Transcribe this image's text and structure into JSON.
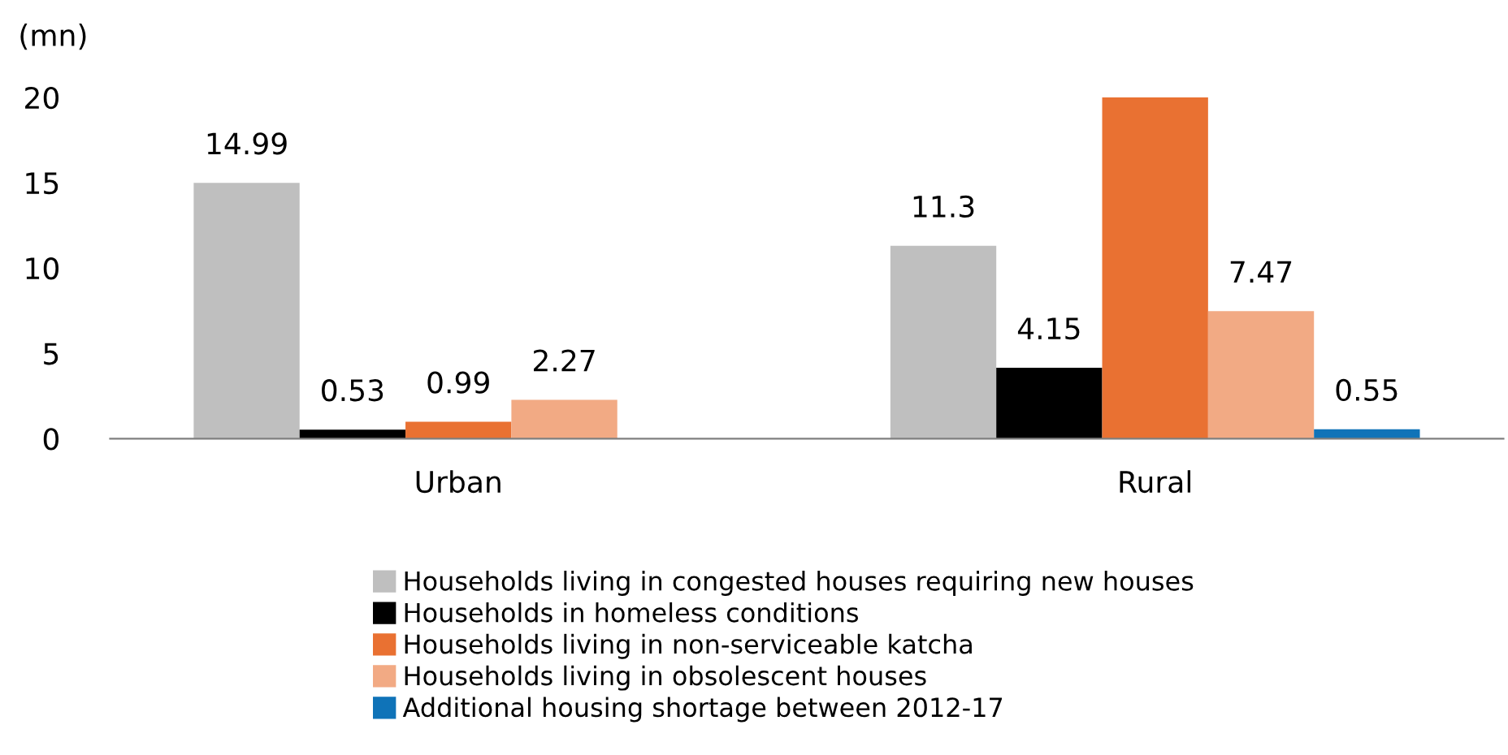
{
  "chart_data": {
    "type": "bar",
    "ylabel": "(mn)",
    "categories": [
      "Urban",
      "Rural"
    ],
    "series": [
      {
        "name": "Households living in congested houses requiring new houses",
        "color": "#bfbfbf",
        "values": [
          14.99,
          11.3
        ],
        "value_labels": [
          "14.99",
          "11.3"
        ]
      },
      {
        "name": "Households in homeless conditions",
        "color": "#000000",
        "values": [
          0.53,
          4.15
        ],
        "value_labels": [
          "0.53",
          "4.15"
        ]
      },
      {
        "name": "Households living in non-serviceable katcha",
        "color": "#e97132",
        "values": [
          0.99,
          20
        ],
        "value_labels": [
          "0.99",
          null
        ]
      },
      {
        "name": "Households living in obsolescent houses",
        "color": "#f2aa84",
        "values": [
          2.27,
          7.47
        ],
        "value_labels": [
          "2.27",
          "7.47"
        ]
      },
      {
        "name": "Additional housing shortage between 2012-17",
        "color": "#0f73b8",
        "values": [
          null,
          0.55
        ],
        "value_labels": [
          null,
          "0.55"
        ]
      }
    ],
    "ylim": [
      0,
      20
    ],
    "yticks": [
      0,
      5,
      10,
      15,
      20
    ],
    "grid": false,
    "legend": "bottom"
  }
}
